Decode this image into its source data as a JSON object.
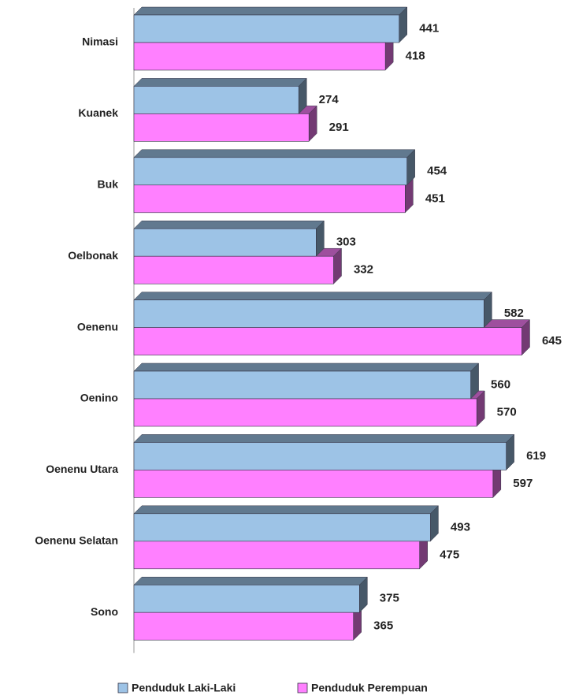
{
  "chart_data": {
    "type": "bar",
    "orientation": "horizontal",
    "categories": [
      "Nimasi",
      "Kuanek",
      "Buk",
      "Oelbonak",
      "Oenenu",
      "Oenino",
      "Oenenu Utara",
      "Oenenu Selatan",
      "Sono"
    ],
    "series": [
      {
        "name": "Penduduk Laki-Laki",
        "color": "#9dc3e6",
        "values": [
          441,
          274,
          454,
          303,
          582,
          560,
          619,
          493,
          375
        ]
      },
      {
        "name": "Penduduk Perempuan",
        "color": "#ff80ff",
        "values": [
          418,
          291,
          451,
          332,
          645,
          570,
          597,
          475,
          365
        ]
      }
    ],
    "xlim": [
      0,
      740
    ],
    "legend": "bottom"
  }
}
